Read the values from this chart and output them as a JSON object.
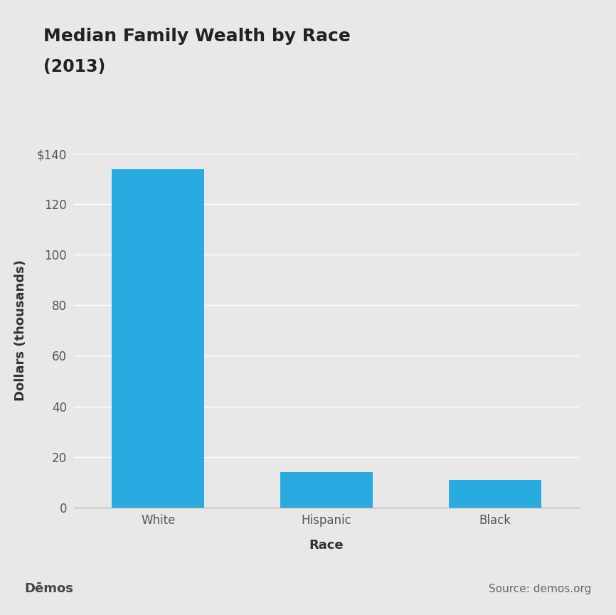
{
  "title_line1": "Median Family Wealth by Race",
  "title_line2": "(2013)",
  "categories": [
    "White",
    "Hispanic",
    "Black"
  ],
  "values": [
    134,
    14,
    11
  ],
  "bar_color": "#29ABE2",
  "background_color": "#E8E8E8",
  "plot_background_color": "#E8E8E8",
  "xlabel": "Race",
  "ylabel": "Dollars (thousands)",
  "ylim": [
    0,
    140
  ],
  "yticks": [
    0,
    20,
    40,
    60,
    80,
    100,
    120,
    140
  ],
  "ytick_labels": [
    "0",
    "20",
    "40",
    "60",
    "80",
    "100",
    "120",
    "$140"
  ],
  "footer_text_left": "Dēmos",
  "footer_text_right": "Source: demos.org",
  "footer_background": "#CECECE",
  "title_fontsize": 18,
  "subtitle_fontsize": 17,
  "axis_label_fontsize": 13,
  "tick_fontsize": 12,
  "footer_fontsize": 13
}
